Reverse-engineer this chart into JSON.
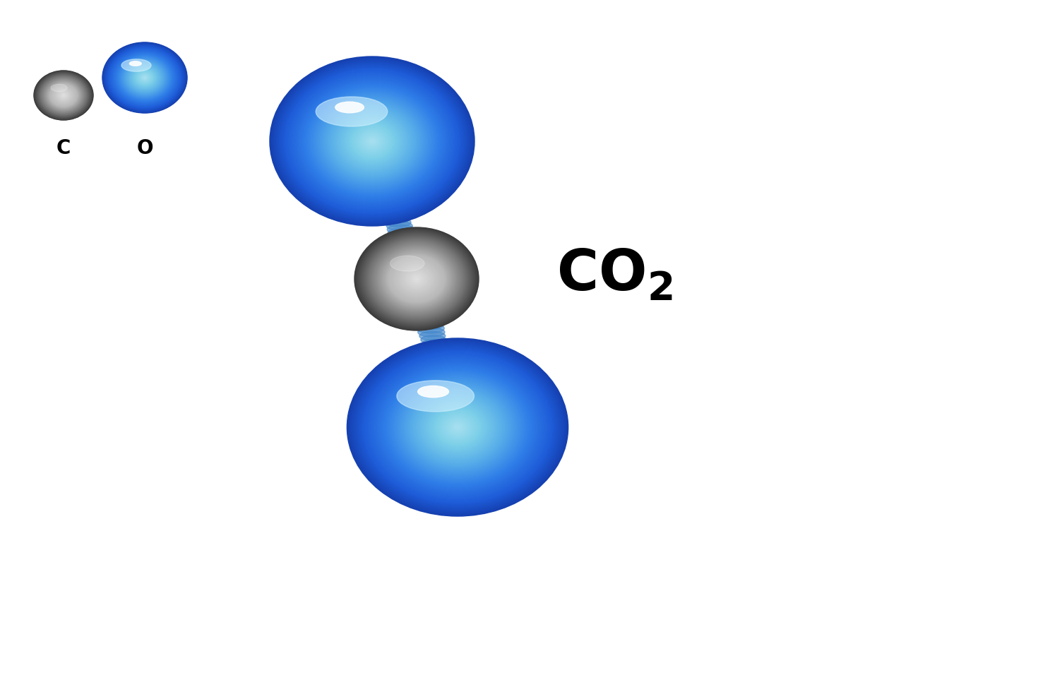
{
  "background_color": "#ffffff",
  "fig_width": 14.7,
  "fig_height": 9.8,
  "dpi": 100,
  "carbon_color_dark": "#3a3a3a",
  "carbon_color_mid": "#787878",
  "carbon_color_light": "#b8b8b8",
  "carbon_color_bright": "#e0e0e0",
  "oxygen_color_dark": "#1540b0",
  "oxygen_color_mid": "#1e5cd8",
  "oxygen_color_core": "#2f7ee8",
  "oxygen_color_light": "#5ab0e8",
  "oxygen_color_teal": "#7dd0e8",
  "oxygen_color_bright": "#a8e0f0",
  "oxygen_color_hilight": "#d0f0ff",
  "bond_color": "#4488cc",
  "label_color": "#000000",
  "co2_fontsize": 58,
  "legend_fontsize": 20
}
